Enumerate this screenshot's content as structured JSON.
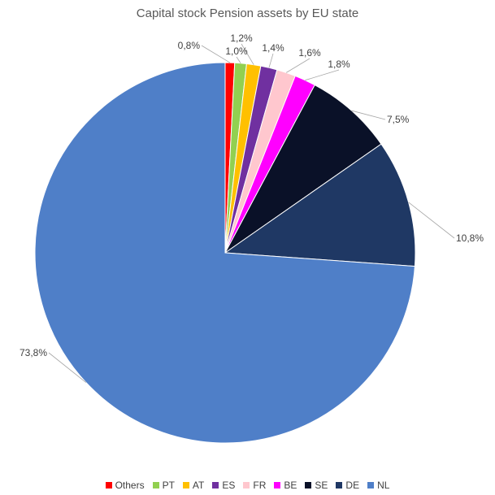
{
  "chart_data": {
    "type": "pie",
    "title": "Capital stock Pension assets by EU state",
    "categories": [
      "Others",
      "PT",
      "AT",
      "ES",
      "FR",
      "BE",
      "SE",
      "DE",
      "NL"
    ],
    "values": [
      0.8,
      1.0,
      1.2,
      1.4,
      1.6,
      1.8,
      7.5,
      10.8,
      73.8
    ],
    "data_labels": [
      "0,8%",
      "1,0%",
      "1,2%",
      "1,4%",
      "1,6%",
      "1,8%",
      "7,5%",
      "10,8%",
      "73,8%"
    ],
    "colors": [
      "#ff0000",
      "#92d050",
      "#ffc000",
      "#7030a0",
      "#ffc7ce",
      "#ff00ff",
      "#0a1128",
      "#1f3864",
      "#4f7fc8"
    ],
    "legend_position": "bottom"
  }
}
